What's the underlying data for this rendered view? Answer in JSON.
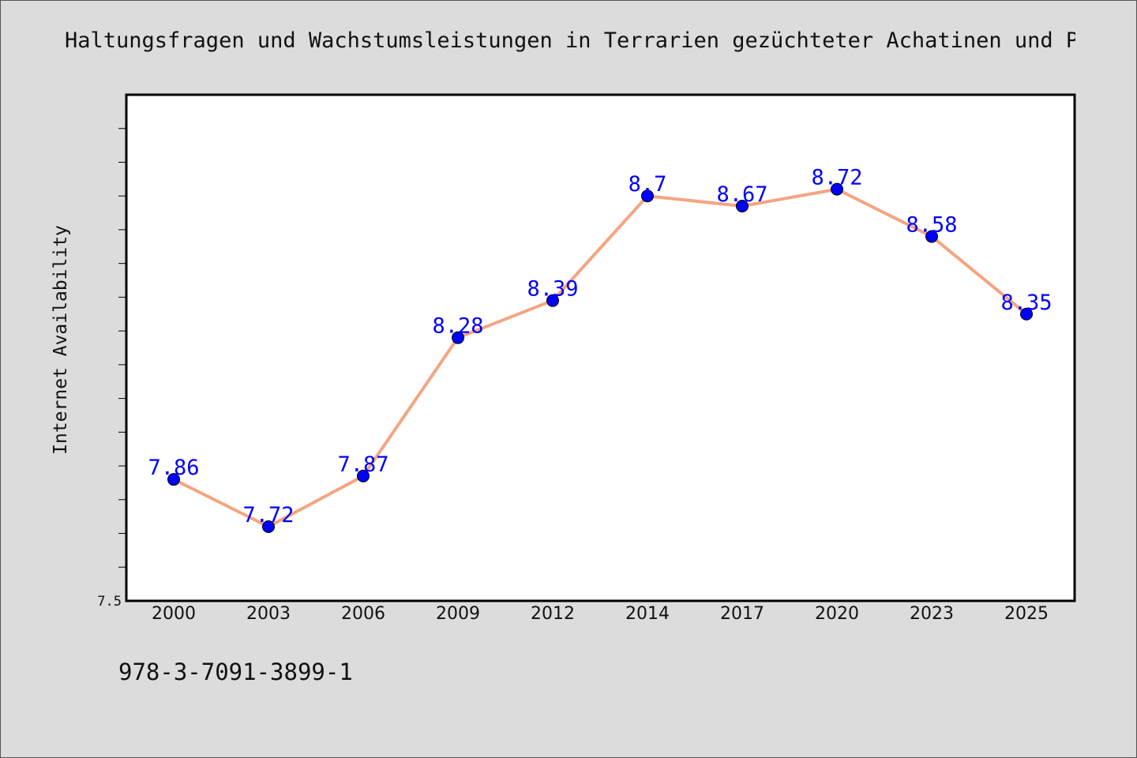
{
  "chart_data": {
    "type": "line",
    "title": "Haltungsfragen und Wachstumsleistungen in Terrarien gezüchteter Achatinen und Pl",
    "ylabel": "Internet Availability",
    "xlabel": "",
    "categories": [
      "2000",
      "2003",
      "2006",
      "2009",
      "2012",
      "2014",
      "2017",
      "2020",
      "2023",
      "2025"
    ],
    "series": [
      {
        "values": [
          7.86,
          7.72,
          7.87,
          8.28,
          8.39,
          8.7,
          8.67,
          8.72,
          8.58,
          8.35
        ],
        "line_color": "#f4a582",
        "marker_color": "#0000ff",
        "label_color": "#0000ff"
      }
    ],
    "ylim": [
      7.5,
      9.0
    ],
    "y_tick_labels": [
      "7.5"
    ],
    "grid": false,
    "legend": "none"
  },
  "footnote": "978-3-7091-3899-1"
}
